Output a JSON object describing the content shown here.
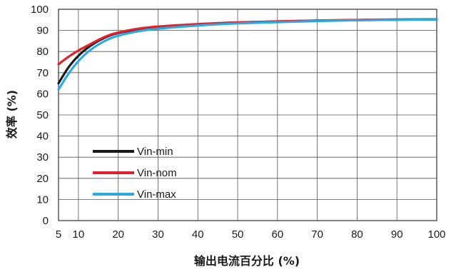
{
  "chart_data": {
    "type": "line",
    "title": "",
    "xlabel": "输出电流百分比 (%)",
    "ylabel": "效率 (%)",
    "xlim": [
      5,
      100
    ],
    "ylim": [
      0,
      100
    ],
    "xticks": [
      5,
      10,
      20,
      30,
      40,
      50,
      60,
      70,
      80,
      90,
      100
    ],
    "yticks": [
      0,
      10,
      20,
      30,
      40,
      50,
      60,
      70,
      80,
      90,
      100
    ],
    "grid": true,
    "legend_position": "lower-left",
    "series": [
      {
        "name": "Vin-min",
        "color": "#1a1a1a",
        "x": [
          5,
          7.5,
          10,
          12.5,
          15,
          17.5,
          20,
          25,
          30,
          40,
          50,
          60,
          70,
          80,
          90,
          100
        ],
        "y": [
          65,
          72.5,
          78,
          82,
          85,
          87.3,
          88.8,
          90.5,
          91.5,
          92.8,
          93.6,
          94.2,
          94.6,
          94.9,
          95.1,
          95.2
        ]
      },
      {
        "name": "Vin-nom",
        "color": "#e0212b",
        "x": [
          5,
          7.5,
          10,
          12.5,
          15,
          17.5,
          20,
          25,
          30,
          40,
          50,
          60,
          70,
          80,
          90,
          100
        ],
        "y": [
          74,
          77.5,
          80.5,
          83,
          85.5,
          87.6,
          89,
          90.8,
          91.8,
          93,
          93.8,
          94.3,
          94.7,
          95,
          95.2,
          95.3
        ]
      },
      {
        "name": "Vin-max",
        "color": "#2aaae2",
        "x": [
          5,
          7.5,
          10,
          12.5,
          15,
          17.5,
          20,
          25,
          30,
          40,
          50,
          60,
          70,
          80,
          90,
          100
        ],
        "y": [
          62,
          69.5,
          75.5,
          80,
          83.3,
          85.8,
          87.5,
          89.6,
          90.8,
          92.3,
          93.3,
          93.9,
          94.4,
          94.8,
          95,
          95.2
        ]
      }
    ]
  }
}
